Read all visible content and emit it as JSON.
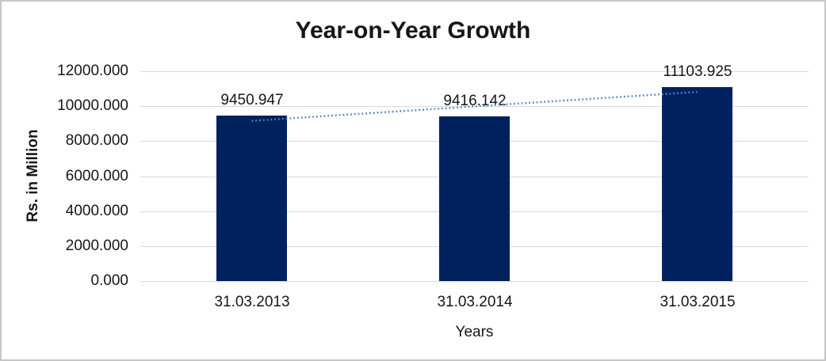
{
  "chart_data": {
    "type": "bar",
    "title": "Year-on-Year Growth",
    "xlabel": "Years",
    "ylabel": "Rs. in Million",
    "categories": [
      "31.03.2013",
      "31.03.2014",
      "31.03.2015"
    ],
    "values": [
      9450.947,
      9416.142,
      11103.925
    ],
    "value_labels": [
      "9450.947",
      "9416.142",
      "11103.925"
    ],
    "ylim": [
      0,
      12000
    ],
    "ytick_step": 2000,
    "ytick_labels": [
      "0.000",
      "2000.000",
      "4000.000",
      "6000.000",
      "8000.000",
      "10000.000",
      "12000.000"
    ],
    "grid": true,
    "legend": "none",
    "bar_color": "#00215e",
    "gridline_color": "#d9d9d9",
    "trendline": {
      "type": "linear",
      "style": "dotted",
      "color": "#4e87c6"
    },
    "frame_color": "#c6c6c6"
  }
}
